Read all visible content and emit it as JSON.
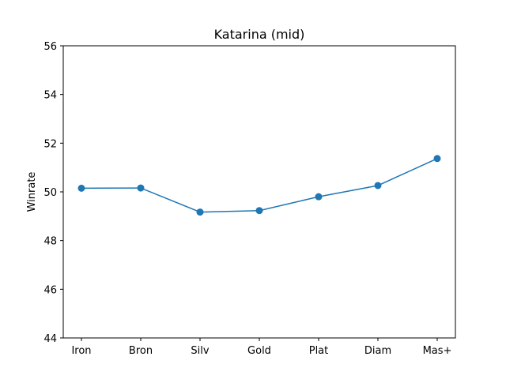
{
  "chart_data": {
    "type": "line",
    "title": "Katarina (mid)",
    "xlabel": "",
    "ylabel": "Winrate",
    "categories": [
      "Iron",
      "Bron",
      "Silv",
      "Gold",
      "Plat",
      "Diam",
      "Mas+"
    ],
    "series": [
      {
        "values": [
          50.15,
          50.16,
          49.17,
          49.23,
          49.8,
          50.26,
          51.37
        ],
        "color": "#1f77b4"
      }
    ],
    "ylim": [
      44,
      56
    ],
    "yticks": [
      "44",
      "46",
      "48",
      "50",
      "52",
      "54",
      "56"
    ],
    "grid": false,
    "legend": "none"
  }
}
